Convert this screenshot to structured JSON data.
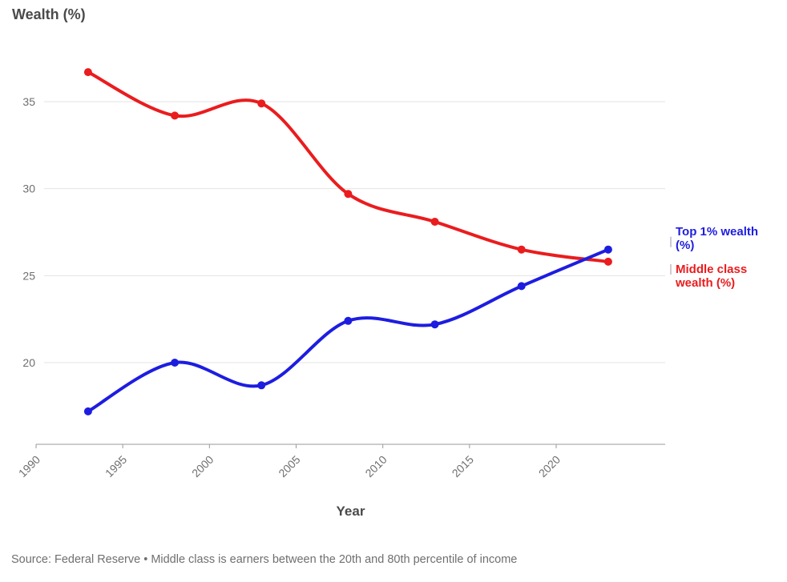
{
  "source": "Source: Federal Reserve • Middle class is earners between the 20th and 80th percentile of income",
  "labels": {
    "top1": "Top 1% wealth (%)",
    "middle": "Middle class wealth (%)"
  },
  "chart_data": {
    "type": "line",
    "title": "",
    "ylabel": "Wealth (%)",
    "xlabel": "Year",
    "x": [
      1993,
      1998,
      2003,
      2008,
      2013,
      2018,
      2023
    ],
    "series": [
      {
        "name": "Middle class wealth (%)",
        "color": "#ea1c1e",
        "values": [
          36.7,
          34.2,
          34.9,
          29.7,
          28.1,
          26.5,
          25.8
        ]
      },
      {
        "name": "Top 1% wealth (%)",
        "color": "#1d1de0",
        "values": [
          17.2,
          20.0,
          18.7,
          22.4,
          22.2,
          24.4,
          26.5
        ]
      }
    ],
    "x_ticks": [
      1990,
      1995,
      2000,
      2005,
      2010,
      2015,
      2020
    ],
    "y_ticks": [
      20,
      25,
      30,
      35
    ],
    "xlim": [
      1990,
      2023.5
    ],
    "ylim": [
      15.3,
      38
    ],
    "grid": "horizontal-only",
    "legend_position": "right-annotations"
  }
}
